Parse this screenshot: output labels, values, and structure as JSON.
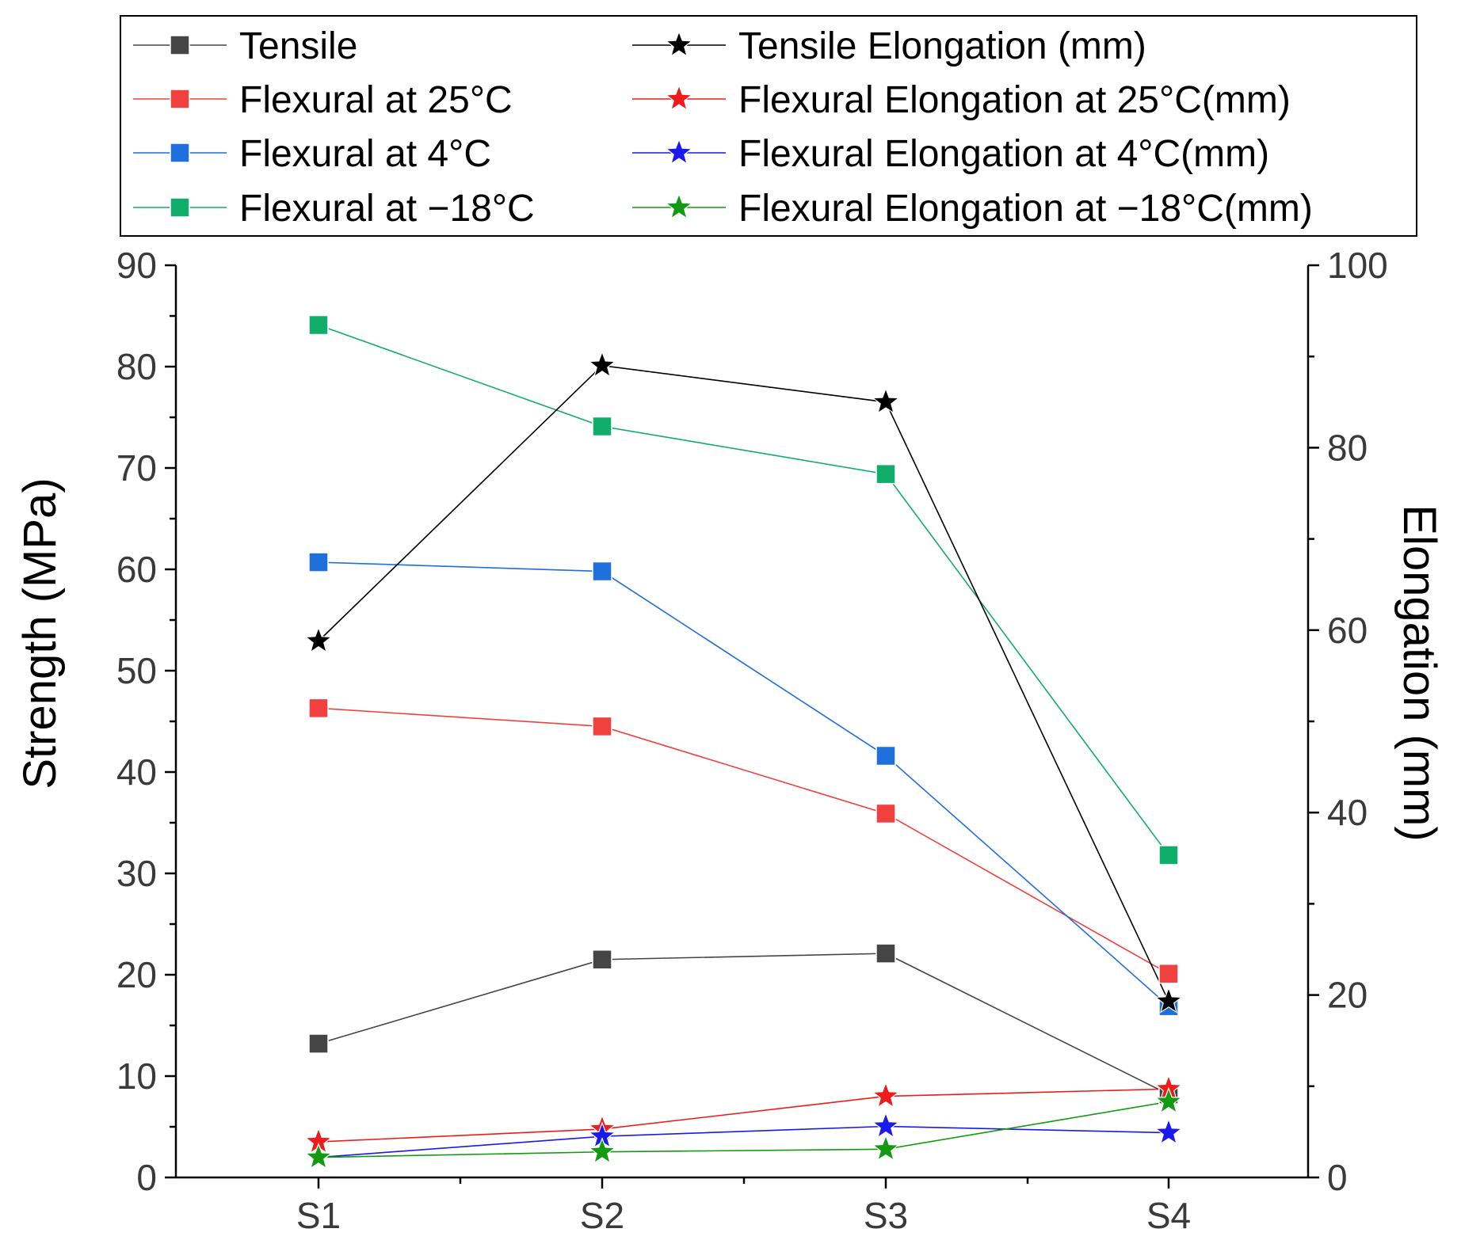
{
  "chart_data": {
    "type": "line",
    "categories": [
      "S1",
      "S2",
      "S3",
      "S4"
    ],
    "y_left": {
      "label": "Strength (MPa)",
      "range": [
        0,
        90
      ],
      "ticks": [
        "0",
        "10",
        "20",
        "30",
        "40",
        "50",
        "60",
        "70",
        "80",
        "90"
      ]
    },
    "y_right": {
      "label": "Elongation (mm)",
      "range": [
        0,
        100
      ],
      "ticks": [
        "0",
        "20",
        "40",
        "60",
        "80",
        "100"
      ]
    },
    "legend_position": "top",
    "series": [
      {
        "name": "Tensile",
        "axis": "left",
        "marker": "square",
        "color": "#454545",
        "values": [
          13.2,
          21.5,
          22.1,
          8.2
        ]
      },
      {
        "name": "Flexural at 25°C",
        "axis": "left",
        "marker": "square",
        "color": "#f0413f",
        "values": [
          46.3,
          44.5,
          35.9,
          20.1
        ]
      },
      {
        "name": "Flexural at 4°C",
        "axis": "left",
        "marker": "square",
        "color": "#1f6fdc",
        "values": [
          60.7,
          59.8,
          41.6,
          16.9
        ]
      },
      {
        "name": "Flexural at −18°C",
        "axis": "left",
        "marker": "square",
        "color": "#11ad6a",
        "values": [
          84.1,
          74.1,
          69.4,
          31.8
        ]
      },
      {
        "name": "Tensile Elongation (mm)",
        "axis": "right",
        "marker": "star",
        "color": "#000000",
        "values": [
          58.8,
          89.0,
          85.0,
          19.3
        ]
      },
      {
        "name": "Flexural Elongation at 25°C(mm)",
        "axis": "right",
        "marker": "star",
        "color": "#ef1a1a",
        "values": [
          3.9,
          5.3,
          8.9,
          9.7
        ]
      },
      {
        "name": "Flexural Elongation at 4°C(mm)",
        "axis": "right",
        "marker": "star",
        "color": "#1a1aee",
        "values": [
          2.2,
          4.5,
          5.6,
          4.9
        ]
      },
      {
        "name": "Flexural Elongation at −18°C(mm)",
        "axis": "right",
        "marker": "star",
        "color": "#129a12",
        "values": [
          2.2,
          2.8,
          3.1,
          8.3
        ]
      }
    ]
  }
}
